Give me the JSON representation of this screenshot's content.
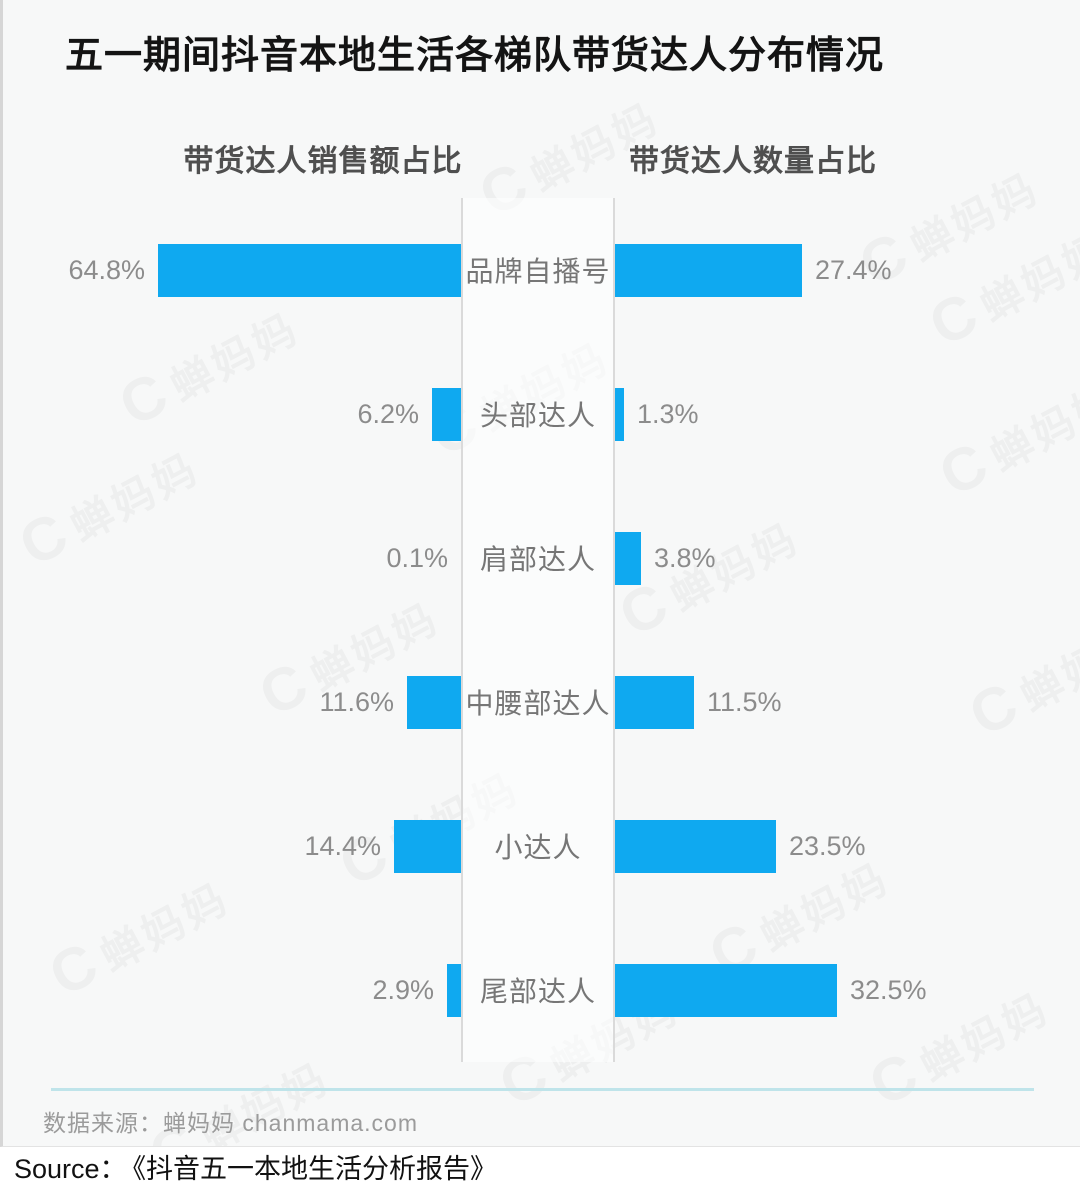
{
  "title": "五一期间抖音本地生活各梯队带货达人分布情况",
  "chart_data": {
    "type": "bar",
    "subtype": "butterfly-horizontal",
    "categories": [
      "品牌自播号",
      "头部达人",
      "肩部达人",
      "中腰部达人",
      "小达人",
      "尾部达人"
    ],
    "series": [
      {
        "name": "带货达人销售额占比",
        "side": "left",
        "values": [
          64.8,
          6.2,
          0.1,
          11.6,
          14.4,
          2.9
        ],
        "labels": [
          "64.8%",
          "6.2%",
          "0.1%",
          "11.6%",
          "14.4%",
          "2.9%"
        ]
      },
      {
        "name": "带货达人数量占比",
        "side": "right",
        "values": [
          27.4,
          1.3,
          3.8,
          11.5,
          23.5,
          32.5
        ],
        "labels": [
          "27.4%",
          "1.3%",
          "3.8%",
          "11.5%",
          "23.5%",
          "32.5%"
        ]
      }
    ],
    "unit": "%",
    "bar_color": "#0fa9f0",
    "legend_position": "column-headers",
    "grid": false
  },
  "footer": {
    "data_source": "数据来源：蝉妈妈 chanmama.com"
  },
  "source_line": {
    "prefix": "Source：",
    "text": "《抖音五一本地生活分析报告》"
  },
  "watermark": {
    "logo_glyph": "C",
    "text": "蝉妈妈"
  }
}
